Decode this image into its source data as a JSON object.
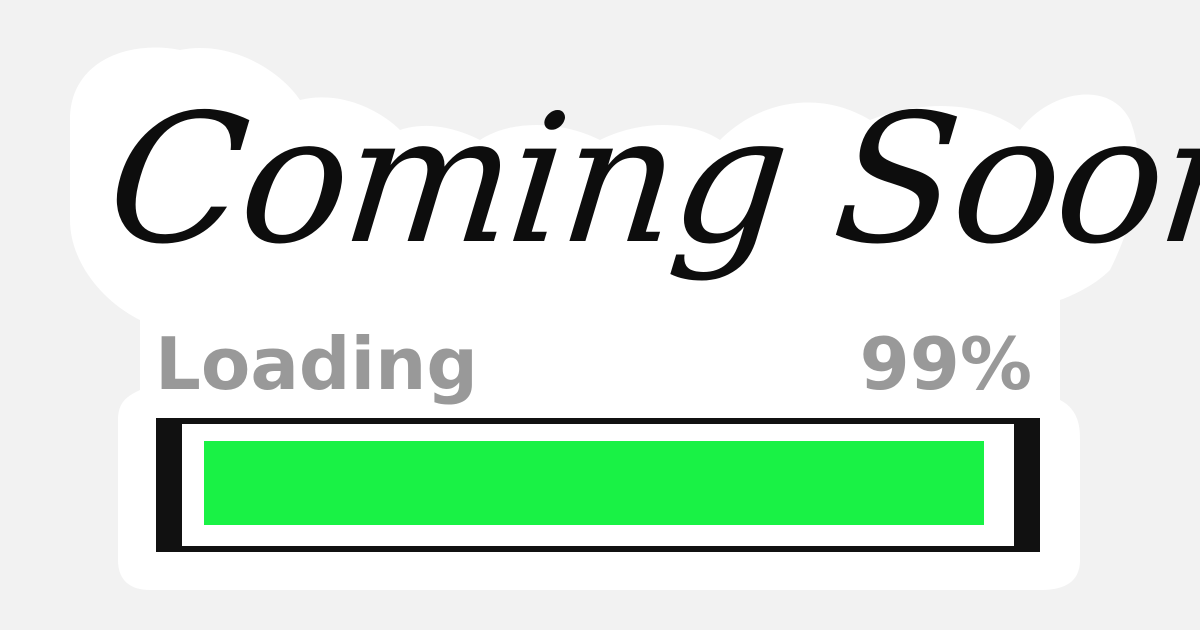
{
  "headline": "Coming Soon!",
  "loading": {
    "label": "Loading",
    "percent_text": "99%",
    "progress_fraction": 0.99
  },
  "colors": {
    "background": "#f2f2f2",
    "sticker": "#ffffff",
    "headline": "#0d0d0d",
    "label": "#999999",
    "bar_frame": "#111111",
    "bar_fill": "#19f245"
  }
}
